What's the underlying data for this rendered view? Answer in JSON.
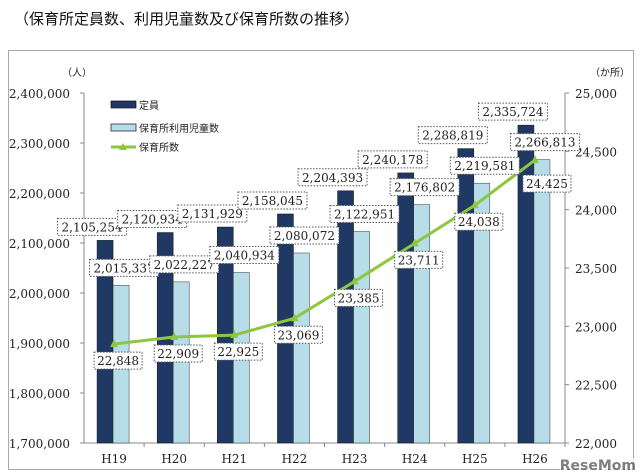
{
  "title": "（保育所定員数、利用児童数及び保育所数の推移）",
  "watermark": "ReseMom",
  "chart_data": {
    "type": "bar+line",
    "title": "（保育所定員数、利用児童数及び保育所数の推移）",
    "categories": [
      "H19",
      "H20",
      "H21",
      "H22",
      "H23",
      "H24",
      "H25",
      "H26"
    ],
    "left_axis": {
      "unit": "（人）",
      "ylim": [
        1700000,
        2400000
      ],
      "ticks": [
        "1,700,000",
        "1,800,000",
        "1,900,000",
        "2,000,000",
        "2,100,000",
        "2,200,000",
        "2,300,000",
        "2,400,000"
      ]
    },
    "right_axis": {
      "unit": "（か所）",
      "ylim": [
        22000,
        25000
      ],
      "ticks": [
        "22,000",
        "22,500",
        "23,000",
        "23,500",
        "24,000",
        "24,500",
        "25,000"
      ]
    },
    "legend_position": "top-left",
    "series": [
      {
        "name": "定員",
        "type": "bar",
        "axis": "left",
        "color": "#1f3864",
        "values": [
          2105254,
          2120934,
          2131929,
          2158045,
          2204393,
          2240178,
          2288819,
          2335724
        ],
        "labels": [
          "2,105,254",
          "2,120,934",
          "2,131,929",
          "2,158,045",
          "2,204,393",
          "2,240,178",
          "2,288,819",
          "2,335,724"
        ]
      },
      {
        "name": "保育所利用児童数",
        "type": "bar",
        "axis": "left",
        "color": "#b7dde8",
        "values": [
          2015337,
          2022227,
          2040934,
          2080072,
          2122951,
          2176802,
          2219581,
          2266813
        ],
        "labels": [
          "2,015,337",
          "2,022,227",
          "2,040,934",
          "2,080,072",
          "2,122,951",
          "2,176,802",
          "2,219,581",
          "2,266,813"
        ]
      },
      {
        "name": "保育所数",
        "type": "line",
        "axis": "right",
        "color": "#8dc63f",
        "values": [
          22848,
          22909,
          22925,
          23069,
          23385,
          23711,
          24038,
          24425
        ],
        "labels": [
          "22,848",
          "22,909",
          "22,925",
          "23,069",
          "23,385",
          "23,711",
          "24,038",
          "24,425"
        ]
      }
    ],
    "grid": false
  }
}
